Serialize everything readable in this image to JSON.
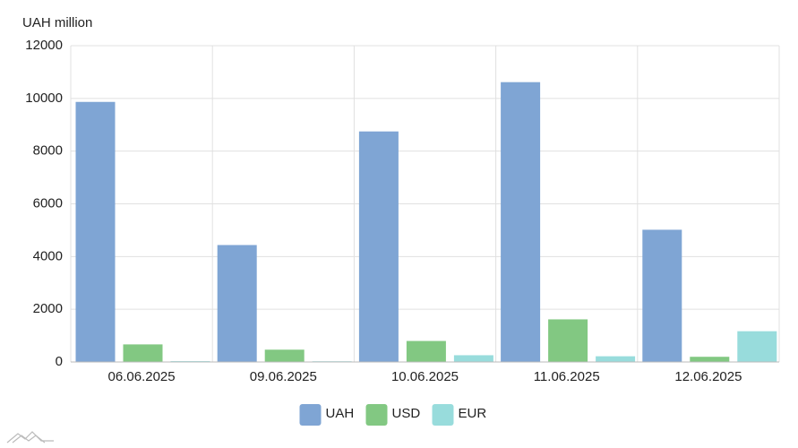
{
  "chart_data": {
    "type": "bar",
    "y_label": "UAH million",
    "categories": [
      "06.06.2025",
      "09.06.2025",
      "10.06.2025",
      "11.06.2025",
      "12.06.2025"
    ],
    "series": [
      {
        "name": "UAH",
        "color": "#7fa5d4",
        "values": [
          9850,
          4420,
          8730,
          10600,
          5000
        ]
      },
      {
        "name": "USD",
        "color": "#82c882",
        "values": [
          650,
          450,
          780,
          1600,
          180
        ]
      },
      {
        "name": "EUR",
        "color": "#98dcdc",
        "values": [
          15,
          10,
          240,
          200,
          1150
        ]
      }
    ],
    "ylim": [
      0,
      12000
    ],
    "yticks": [
      0,
      2000,
      4000,
      6000,
      8000,
      10000,
      12000
    ],
    "grid": true,
    "legend": "bottom"
  }
}
